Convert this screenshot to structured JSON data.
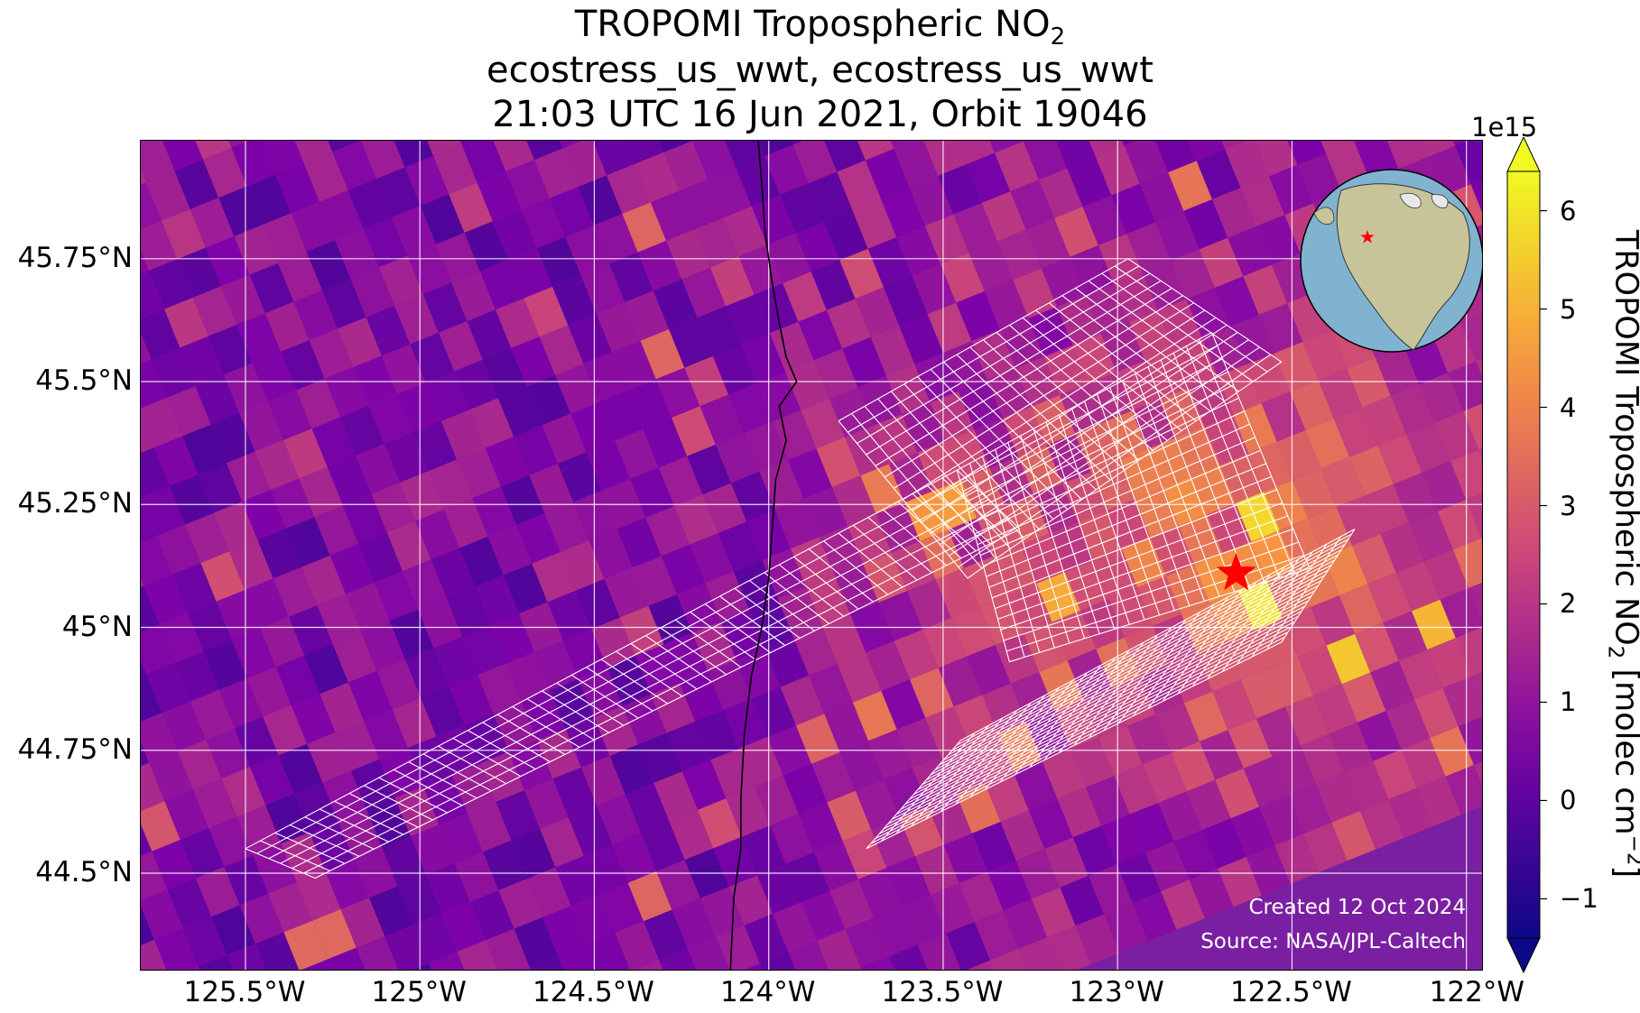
{
  "title": {
    "line1_prefix": "TROPOMI Tropospheric NO",
    "line1_sub": "2",
    "line2": "ecostress_us_wwt, ecostress_us_wwt",
    "line3": "21:03 UTC 16 Jun 2021, Orbit 19046"
  },
  "map": {
    "extent": {
      "lon_min": -125.8,
      "lon_max": -121.95,
      "lat_min": 44.3,
      "lat_max": 45.99
    },
    "lat_ticks": [
      {
        "value": 45.75,
        "label": "45.75°N"
      },
      {
        "value": 45.5,
        "label": "45.5°N"
      },
      {
        "value": 45.25,
        "label": "45.25°N"
      },
      {
        "value": 45.0,
        "label": "45°N"
      },
      {
        "value": 44.75,
        "label": "44.75°N"
      },
      {
        "value": 44.5,
        "label": "44.5°N"
      }
    ],
    "lon_ticks": [
      {
        "value": -125.5,
        "label": "125.5°W"
      },
      {
        "value": -125.0,
        "label": "125°W"
      },
      {
        "value": -124.5,
        "label": "124.5°W"
      },
      {
        "value": -124.0,
        "label": "124°W"
      },
      {
        "value": -123.5,
        "label": "123.5°W"
      },
      {
        "value": -123.0,
        "label": "123°W"
      },
      {
        "value": -122.5,
        "label": "122.5°W"
      },
      {
        "value": -122.0,
        "label": "122°W"
      }
    ],
    "target_marker": {
      "lon": -122.66,
      "lat": 45.11,
      "symbol": "star",
      "color": "#ff0000"
    },
    "coastline_color": "#000000",
    "footprint_color": "#ffffff",
    "gridline_color": "#ffffff",
    "credits": {
      "created": "Created 12 Oct 2024",
      "source": "Source: NASA/JPL-Caltech"
    },
    "inset_globe": {
      "marker_color": "#ff0000",
      "ocean_color": "#7fb3d0",
      "land_color": "#c8c49a"
    }
  },
  "colorbar": {
    "colormap": "plasma",
    "extend": "both",
    "scale_label": "1e15",
    "label_prefix": "TROPOMI Tropospheric NO",
    "label_sub": "2",
    "label_mid": " [molec cm",
    "label_sup": "−2",
    "label_suffix": "]",
    "vmin": -1.4,
    "vmax": 6.4,
    "ticks": [
      {
        "value": -1,
        "label": "−1"
      },
      {
        "value": 0,
        "label": "0"
      },
      {
        "value": 1,
        "label": "1"
      },
      {
        "value": 2,
        "label": "2"
      },
      {
        "value": 3,
        "label": "3"
      },
      {
        "value": 4,
        "label": "4"
      },
      {
        "value": 5,
        "label": "5"
      },
      {
        "value": 6,
        "label": "6"
      }
    ]
  }
}
